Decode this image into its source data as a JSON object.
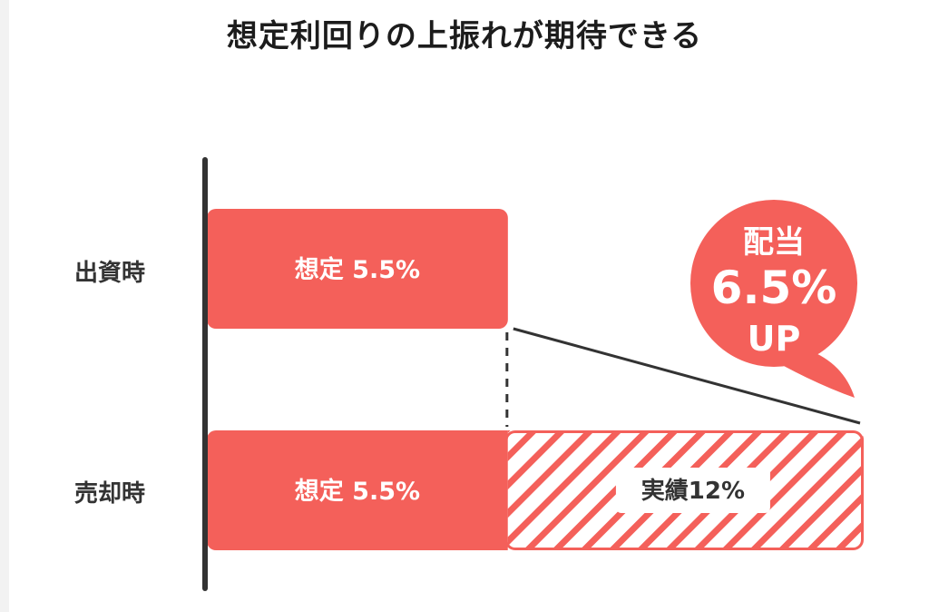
{
  "chart_data": {
    "type": "bar",
    "title": "想定利回りの上振れが期待できる",
    "orientation": "horizontal",
    "stacked": true,
    "categories": [
      "出資時",
      "売却時"
    ],
    "series": [
      {
        "name": "想定",
        "values": [
          5.5,
          5.5
        ],
        "labels": [
          "想定 5.5%",
          "想定 5.5%"
        ],
        "style": "solid"
      },
      {
        "name": "実績",
        "values": [
          null,
          6.5
        ],
        "labels": [
          "",
          "実績12%"
        ],
        "style": "hatched"
      }
    ],
    "annotation": {
      "line1": "配当",
      "line2": "6.5%",
      "line3": "UP"
    },
    "xlim": [
      0,
      12
    ],
    "grid": false,
    "legend": "none",
    "colors": {
      "bar": "#f4605a",
      "axis": "#333333",
      "background": "#ffffff",
      "label_box": "#ffffff"
    }
  }
}
